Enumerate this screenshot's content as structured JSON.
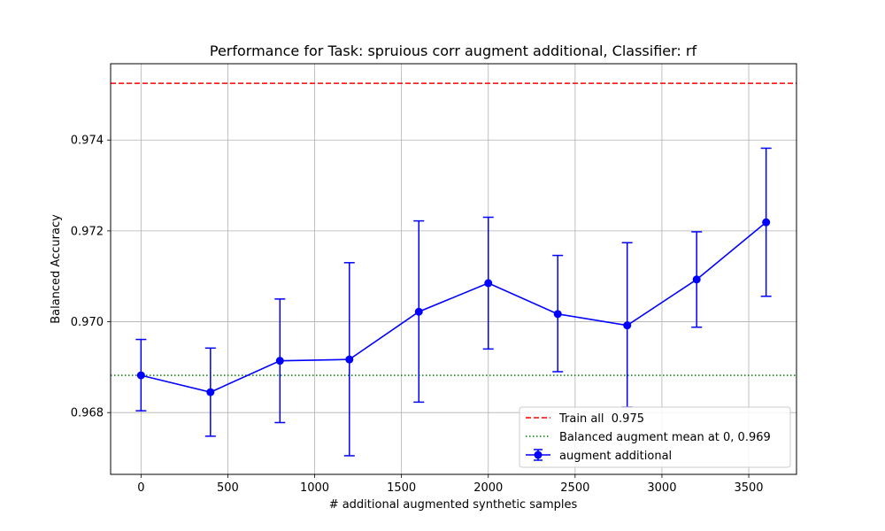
{
  "chart_data": {
    "type": "line",
    "title": "Performance for Task: spruious corr augment additional, Classifier: rf",
    "xlabel": "# additional augmented synthetic samples",
    "ylabel": "Balanced Accuracy",
    "xlim": [
      -175,
      3775
    ],
    "ylim": [
      0.96664,
      0.97568
    ],
    "x_ticks": [
      0,
      500,
      1000,
      1500,
      2000,
      2500,
      3000,
      3500
    ],
    "x_tick_labels": [
      "0",
      "500",
      "1000",
      "1500",
      "2000",
      "2500",
      "3000",
      "3500"
    ],
    "y_ticks": [
      0.968,
      0.97,
      0.972,
      0.974
    ],
    "y_tick_labels": [
      "0.968",
      "0.970",
      "0.972",
      "0.974"
    ],
    "grid": true,
    "legend_position": "lower right",
    "series": [
      {
        "name": "augment additional",
        "color": "#0000ff",
        "marker": "circle",
        "x": [
          0,
          400,
          800,
          1200,
          1600,
          2000,
          2400,
          2800,
          3200,
          3600
        ],
        "y": [
          0.96882,
          0.96845,
          0.96914,
          0.96917,
          0.97022,
          0.97085,
          0.97017,
          0.96992,
          0.97093,
          0.97219
        ],
        "yerr_low": [
          0.96804,
          0.96748,
          0.96778,
          0.96705,
          0.96823,
          0.9694,
          0.9689,
          0.96812,
          0.96988,
          0.97056
        ],
        "yerr_high": [
          0.96961,
          0.96942,
          0.9705,
          0.9713,
          0.97222,
          0.9723,
          0.97146,
          0.97174,
          0.97198,
          0.97382
        ]
      }
    ],
    "reference_lines": [
      {
        "name": "Train all  0.975",
        "value": 0.97525,
        "color": "#ff0000",
        "style": "dashed"
      },
      {
        "name": "Balanced augment mean at 0, 0.969",
        "value": 0.96882,
        "color": "#008000",
        "style": "dotted"
      }
    ]
  }
}
